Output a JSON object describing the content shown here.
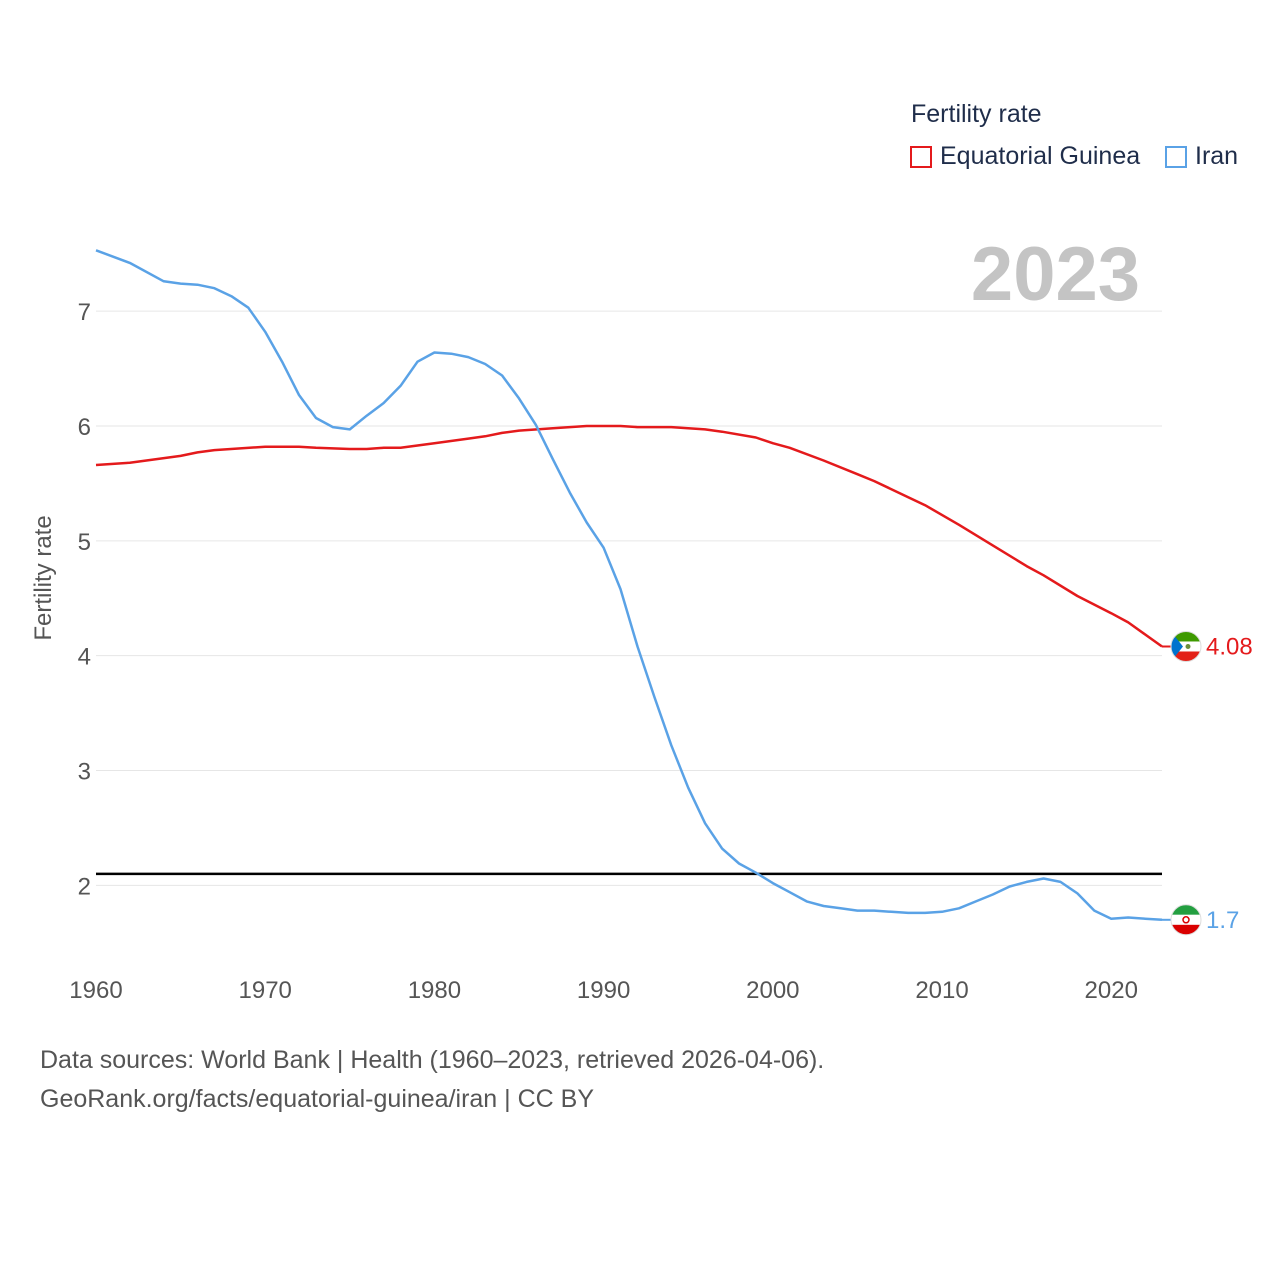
{
  "chart_data": {
    "type": "line",
    "title": "Fertility rate",
    "ylabel": "Fertility rate",
    "xlabel": "",
    "year_badge": "2023",
    "xlim": [
      1960,
      2023
    ],
    "ylim": [
      1.35,
      7.55
    ],
    "xticks": [
      1960,
      1970,
      1980,
      1990,
      2000,
      2010,
      2020
    ],
    "yticks": [
      2,
      3,
      4,
      5,
      6,
      7
    ],
    "reference_line": 2.1,
    "legend_position": "top-right",
    "series": [
      {
        "name": "Equatorial Guinea",
        "color": "#e41a1c",
        "end_label": "4.08",
        "x": [
          1960,
          1962,
          1965,
          1966,
          1967,
          1970,
          1972,
          1973,
          1975,
          1976,
          1977,
          1978,
          1980,
          1982,
          1983,
          1984,
          1985,
          1987,
          1989,
          1991,
          1992,
          1994,
          1995,
          1996,
          1997,
          1999,
          2000,
          2001,
          2003,
          2005,
          2006,
          2008,
          2009,
          2011,
          2013,
          2015,
          2016,
          2018,
          2020,
          2021,
          2023
        ],
        "values": [
          5.66,
          5.68,
          5.74,
          5.77,
          5.79,
          5.82,
          5.82,
          5.81,
          5.8,
          5.8,
          5.81,
          5.81,
          5.85,
          5.89,
          5.91,
          5.94,
          5.96,
          5.98,
          6.0,
          6.0,
          5.99,
          5.99,
          5.98,
          5.97,
          5.95,
          5.9,
          5.85,
          5.81,
          5.7,
          5.58,
          5.52,
          5.38,
          5.31,
          5.14,
          4.96,
          4.78,
          4.7,
          4.52,
          4.37,
          4.29,
          4.08
        ]
      },
      {
        "name": "Iran",
        "color": "#5aa2e6",
        "end_label": "1.7",
        "x": [
          1960,
          1962,
          1964,
          1965,
          1966,
          1967,
          1968,
          1969,
          1970,
          1971,
          1972,
          1973,
          1974,
          1975,
          1976,
          1977,
          1978,
          1979,
          1980,
          1981,
          1982,
          1983,
          1984,
          1985,
          1986,
          1987,
          1988,
          1989,
          1990,
          1991,
          1992,
          1993,
          1994,
          1995,
          1996,
          1997,
          1998,
          1999,
          2000,
          2001,
          2002,
          2003,
          2004,
          2005,
          2006,
          2007,
          2008,
          2009,
          2010,
          2011,
          2012,
          2013,
          2014,
          2015,
          2016,
          2017,
          2018,
          2019,
          2020,
          2021,
          2022,
          2023
        ],
        "values": [
          7.53,
          7.42,
          7.26,
          7.24,
          7.23,
          7.2,
          7.13,
          7.03,
          6.82,
          6.56,
          6.27,
          6.07,
          5.99,
          5.97,
          6.09,
          6.2,
          6.35,
          6.56,
          6.64,
          6.63,
          6.6,
          6.54,
          6.44,
          6.24,
          6.01,
          5.71,
          5.42,
          5.16,
          4.94,
          4.58,
          4.08,
          3.64,
          3.22,
          2.85,
          2.54,
          2.32,
          2.19,
          2.11,
          2.02,
          1.94,
          1.86,
          1.82,
          1.8,
          1.78,
          1.78,
          1.77,
          1.76,
          1.76,
          1.77,
          1.8,
          1.86,
          1.92,
          1.99,
          2.03,
          2.06,
          2.03,
          1.93,
          1.78,
          1.71,
          1.72,
          1.71,
          1.7
        ]
      }
    ]
  },
  "footer": {
    "source": "Data sources: World Bank | Health (1960–2023, retrieved 2026-04-06).",
    "url": "GeoRank.org/facts/equatorial-guinea/iran | CC BY"
  }
}
